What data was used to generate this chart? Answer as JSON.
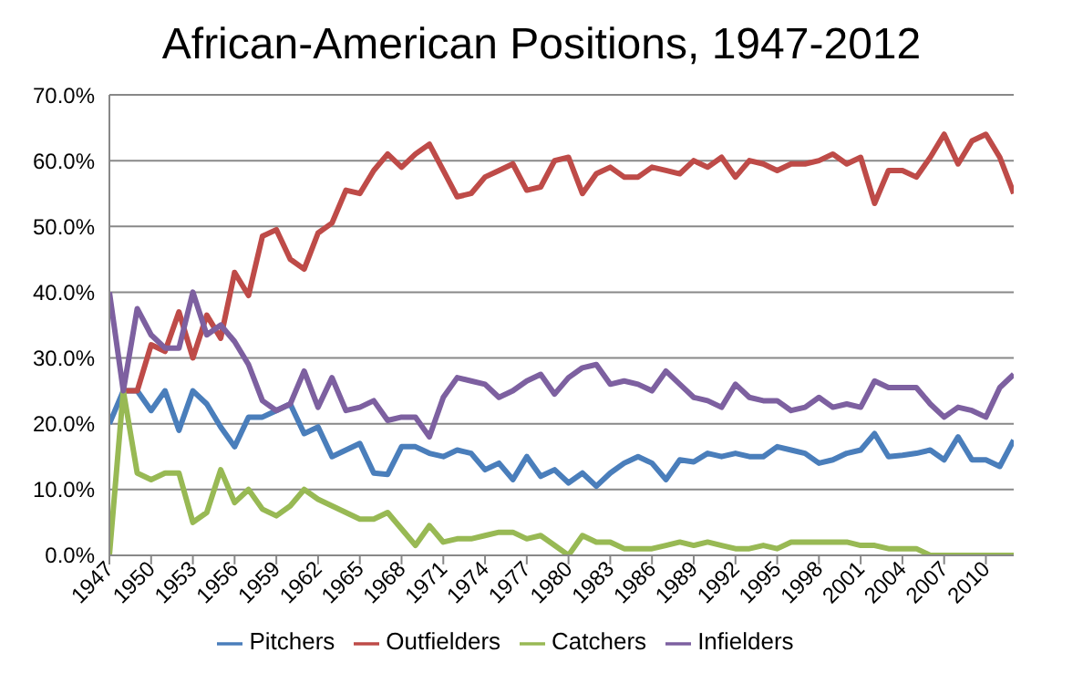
{
  "chart_data": {
    "type": "line",
    "title": "African-American Positions, 1947-2012",
    "x": [
      1947,
      1948,
      1949,
      1950,
      1951,
      1952,
      1953,
      1954,
      1955,
      1956,
      1957,
      1958,
      1959,
      1960,
      1961,
      1962,
      1963,
      1964,
      1965,
      1966,
      1967,
      1968,
      1969,
      1970,
      1971,
      1972,
      1973,
      1974,
      1975,
      1976,
      1977,
      1978,
      1979,
      1980,
      1981,
      1982,
      1983,
      1984,
      1985,
      1986,
      1987,
      1988,
      1989,
      1990,
      1991,
      1992,
      1993,
      1994,
      1995,
      1996,
      1997,
      1998,
      1999,
      2000,
      2001,
      2002,
      2003,
      2004,
      2005,
      2006,
      2007,
      2008,
      2009,
      2010,
      2011,
      2012
    ],
    "series": [
      {
        "name": "Pitchers",
        "color": "#4a7ebb",
        "values": [
          20,
          25,
          25,
          22,
          25,
          19,
          25,
          23,
          19.5,
          16.5,
          21,
          21,
          22,
          23,
          18.5,
          19.5,
          15,
          16,
          17,
          12.5,
          12.3,
          16.5,
          16.5,
          15.5,
          15,
          16,
          15.5,
          13,
          14,
          11.5,
          15,
          12,
          13,
          11,
          12.5,
          10.5,
          12.5,
          14,
          15,
          14,
          11.5,
          14.5,
          14.2,
          15.5,
          15,
          15.5,
          15,
          15,
          16.5,
          16,
          15.5,
          14,
          14.5,
          15.5,
          16,
          18.5,
          15,
          15.2,
          15.5,
          16,
          14.5,
          18,
          14.5,
          14.5,
          13.5,
          17.5
        ]
      },
      {
        "name": "Outfielders",
        "color": "#be4b48",
        "values": [
          null,
          25,
          25,
          32,
          31,
          37,
          30,
          36.5,
          33,
          43,
          39.5,
          48.5,
          49.5,
          45,
          43.5,
          49,
          50.5,
          55.5,
          55,
          58.5,
          61,
          59,
          61,
          62.5,
          58.5,
          54.5,
          55,
          57.5,
          58.5,
          59.5,
          55.5,
          56,
          60,
          60.5,
          55,
          58,
          59,
          57.5,
          57.5,
          59,
          58.5,
          58,
          60,
          59,
          60.5,
          57.5,
          60,
          59.5,
          58.5,
          59.5,
          59.5,
          60,
          61,
          59.5,
          60.5,
          53.5,
          58.5,
          58.5,
          57.5,
          60.5,
          64,
          59.5,
          63,
          64,
          60.5,
          55
        ]
      },
      {
        "name": "Catchers",
        "color": "#98b954",
        "values": [
          0,
          25,
          12.5,
          11.5,
          12.5,
          12.5,
          5,
          6.5,
          13,
          8,
          10,
          7,
          6,
          7.5,
          10,
          8.5,
          7.5,
          6.5,
          5.5,
          5.5,
          6.5,
          4,
          1.5,
          4.5,
          2,
          2.5,
          2.5,
          3,
          3.5,
          3.5,
          2.5,
          3,
          1.5,
          0,
          3,
          2,
          2,
          1,
          1,
          1,
          1.5,
          2,
          1.5,
          2,
          1.5,
          1,
          1,
          1.5,
          1,
          2,
          2,
          2,
          2,
          2,
          1.5,
          1.5,
          1,
          1,
          1,
          0,
          0,
          0,
          0,
          0,
          0,
          0
        ]
      },
      {
        "name": "Infielders",
        "color": "#7d60a0",
        "values": [
          40,
          25,
          37.5,
          33.5,
          31.5,
          31.5,
          40,
          33.5,
          35,
          32.5,
          29,
          23.5,
          22,
          23,
          28,
          22.5,
          27,
          22,
          22.5,
          23.5,
          20.5,
          21,
          21,
          18,
          24,
          27,
          26.5,
          26,
          24,
          25,
          26.5,
          27.5,
          24.5,
          27,
          28.5,
          29,
          26,
          26.5,
          26,
          25,
          28,
          26,
          24,
          23.5,
          22.5,
          26,
          24,
          23.5,
          23.5,
          22,
          22.5,
          24,
          22.5,
          23,
          22.5,
          26.5,
          25.5,
          25.5,
          25.5,
          23,
          21,
          22.5,
          22,
          21,
          25.5,
          27.5
        ]
      }
    ],
    "xlim": [
      1947,
      2012
    ],
    "xticks": [
      1947,
      1950,
      1953,
      1956,
      1959,
      1962,
      1965,
      1968,
      1971,
      1974,
      1977,
      1980,
      1983,
      1986,
      1989,
      1992,
      1995,
      1998,
      2001,
      2004,
      2007,
      2010
    ],
    "ylim": [
      0,
      70
    ],
    "yticks": [
      {
        "value": 0,
        "label": "0.0%"
      },
      {
        "value": 10,
        "label": "10.0%"
      },
      {
        "value": 20,
        "label": "20.0%"
      },
      {
        "value": 30,
        "label": "30.0%"
      },
      {
        "value": 40,
        "label": "40.0%"
      },
      {
        "value": 50,
        "label": "50.0%"
      },
      {
        "value": 60,
        "label": "60.0%"
      },
      {
        "value": 70,
        "label": "70.0%"
      }
    ],
    "grid": "y",
    "legend": "bottom",
    "marker": "none",
    "line_style": "solid"
  }
}
